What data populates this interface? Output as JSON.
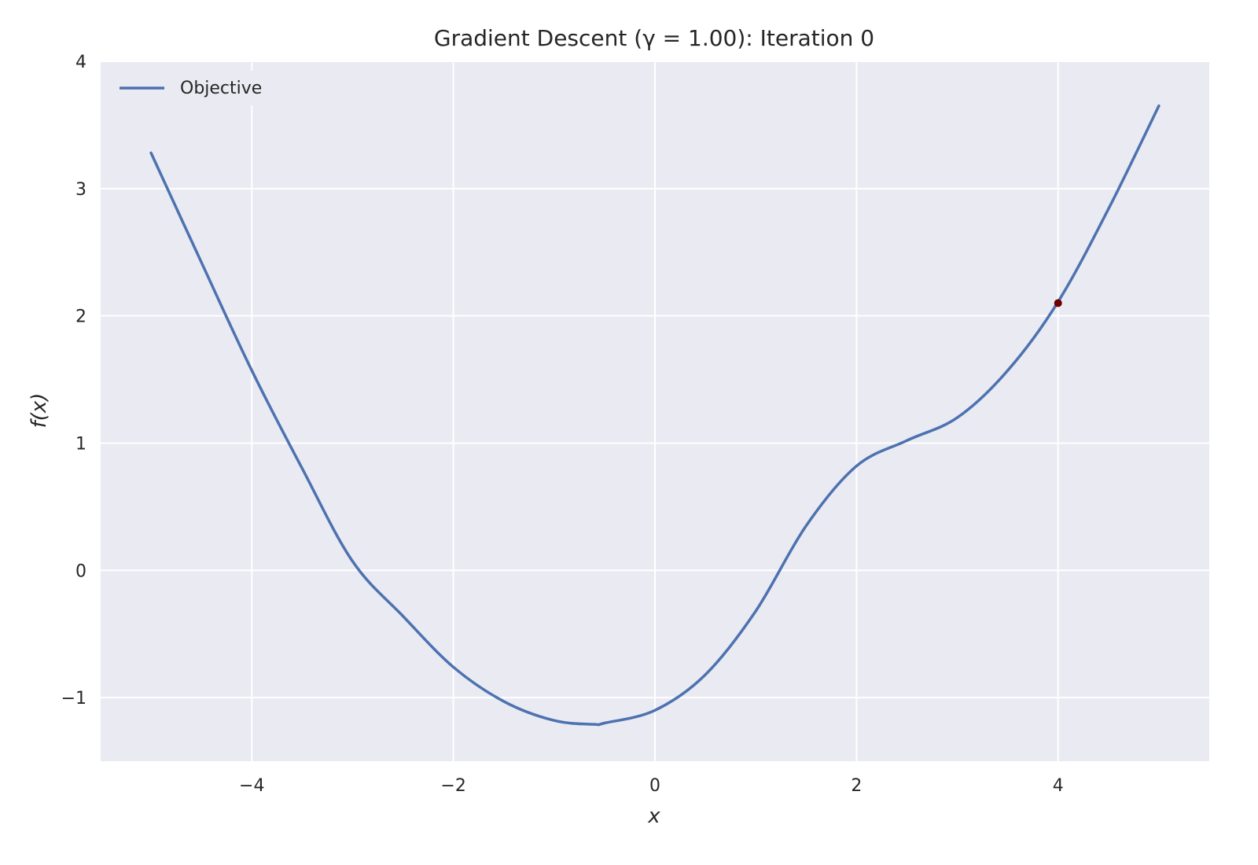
{
  "chart_data": {
    "type": "line",
    "title": "Gradient Descent (γ = 1.00): Iteration 0",
    "xlabel": "x",
    "ylabel": "f(x)",
    "xlim": [
      -5.5,
      5.5
    ],
    "ylim": [
      -1.5,
      4
    ],
    "xticks": [
      -4,
      -2,
      0,
      2,
      4
    ],
    "xtick_labels": [
      "−4",
      "−2",
      "0",
      "2",
      "4"
    ],
    "yticks": [
      -1,
      0,
      1,
      2,
      3,
      4
    ],
    "ytick_labels": [
      "−1",
      "0",
      "1",
      "2",
      "3",
      "4"
    ],
    "grid": true,
    "legend": {
      "position": "top-left",
      "entries": [
        "Objective"
      ]
    },
    "colors": {
      "series": "#4c72b0",
      "marker": "#6b0000",
      "axes_bg": "#eaeaf2",
      "grid": "#ffffff"
    },
    "series": [
      {
        "name": "Objective",
        "x": [
          -5.0,
          -4.5,
          -4.0,
          -3.5,
          -3.0,
          -2.5,
          -2.0,
          -1.5,
          -1.0,
          -0.6,
          -0.5,
          0.0,
          0.5,
          1.0,
          1.5,
          2.0,
          2.5,
          3.0,
          3.5,
          4.0,
          4.5,
          5.0
        ],
        "y": [
          3.28,
          2.42,
          1.57,
          0.8,
          0.07,
          -0.36,
          -0.76,
          -1.03,
          -1.18,
          -1.21,
          -1.2,
          -1.1,
          -0.82,
          -0.32,
          0.35,
          0.82,
          1.02,
          1.2,
          1.57,
          2.11,
          2.84,
          3.65
        ]
      }
    ],
    "points": [
      {
        "name": "Iterate",
        "x": 4.0,
        "y": 2.1
      }
    ]
  }
}
